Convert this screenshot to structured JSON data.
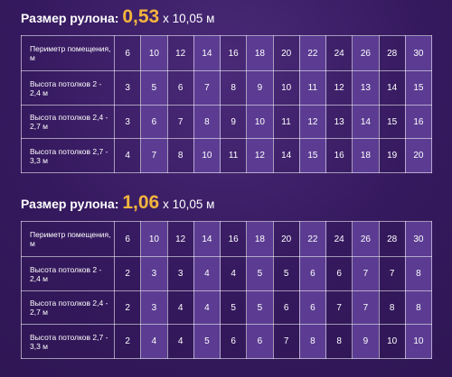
{
  "tables": [
    {
      "title_prefix": "Размер рулона:",
      "title_value": "0,53",
      "title_suffix": "х 10,05 м",
      "header_label": "Периметр помещения, м",
      "perimeters": [
        "6",
        "10",
        "12",
        "14",
        "16",
        "18",
        "20",
        "22",
        "24",
        "26",
        "28",
        "30"
      ],
      "rows": [
        {
          "label": "Высота потолков 2 - 2,4 м",
          "values": [
            "3",
            "5",
            "6",
            "7",
            "8",
            "9",
            "10",
            "11",
            "12",
            "13",
            "14",
            "15"
          ]
        },
        {
          "label": "Высота потолков 2,4 - 2,7 м",
          "values": [
            "3",
            "6",
            "7",
            "8",
            "9",
            "10",
            "11",
            "12",
            "13",
            "14",
            "15",
            "16"
          ]
        },
        {
          "label": "Высота потолков 2,7 - 3,3 м",
          "values": [
            "4",
            "7",
            "8",
            "10",
            "11",
            "12",
            "14",
            "15",
            "16",
            "18",
            "19",
            "20"
          ]
        }
      ]
    },
    {
      "title_prefix": "Размер рулона:",
      "title_value": "1,06",
      "title_suffix": "х 10,05 м",
      "header_label": "Периметр помещения, м",
      "perimeters": [
        "6",
        "10",
        "12",
        "14",
        "16",
        "18",
        "20",
        "22",
        "24",
        "26",
        "28",
        "30"
      ],
      "rows": [
        {
          "label": "Высота потолков 2 - 2,4 м",
          "values": [
            "2",
            "3",
            "3",
            "4",
            "4",
            "5",
            "5",
            "6",
            "6",
            "7",
            "7",
            "8"
          ]
        },
        {
          "label": "Высота потолков 2,4 - 2,7 м",
          "values": [
            "2",
            "3",
            "4",
            "4",
            "5",
            "5",
            "6",
            "6",
            "7",
            "7",
            "8",
            "8"
          ]
        },
        {
          "label": "Высота потолков 2,7 - 3,3 м",
          "values": [
            "2",
            "4",
            "4",
            "5",
            "6",
            "6",
            "7",
            "8",
            "8",
            "9",
            "10",
            "10"
          ]
        }
      ]
    }
  ],
  "colors": {
    "background": "#3a1f64",
    "accent": "#f4b53d",
    "alt_column": "#5b3c92"
  }
}
